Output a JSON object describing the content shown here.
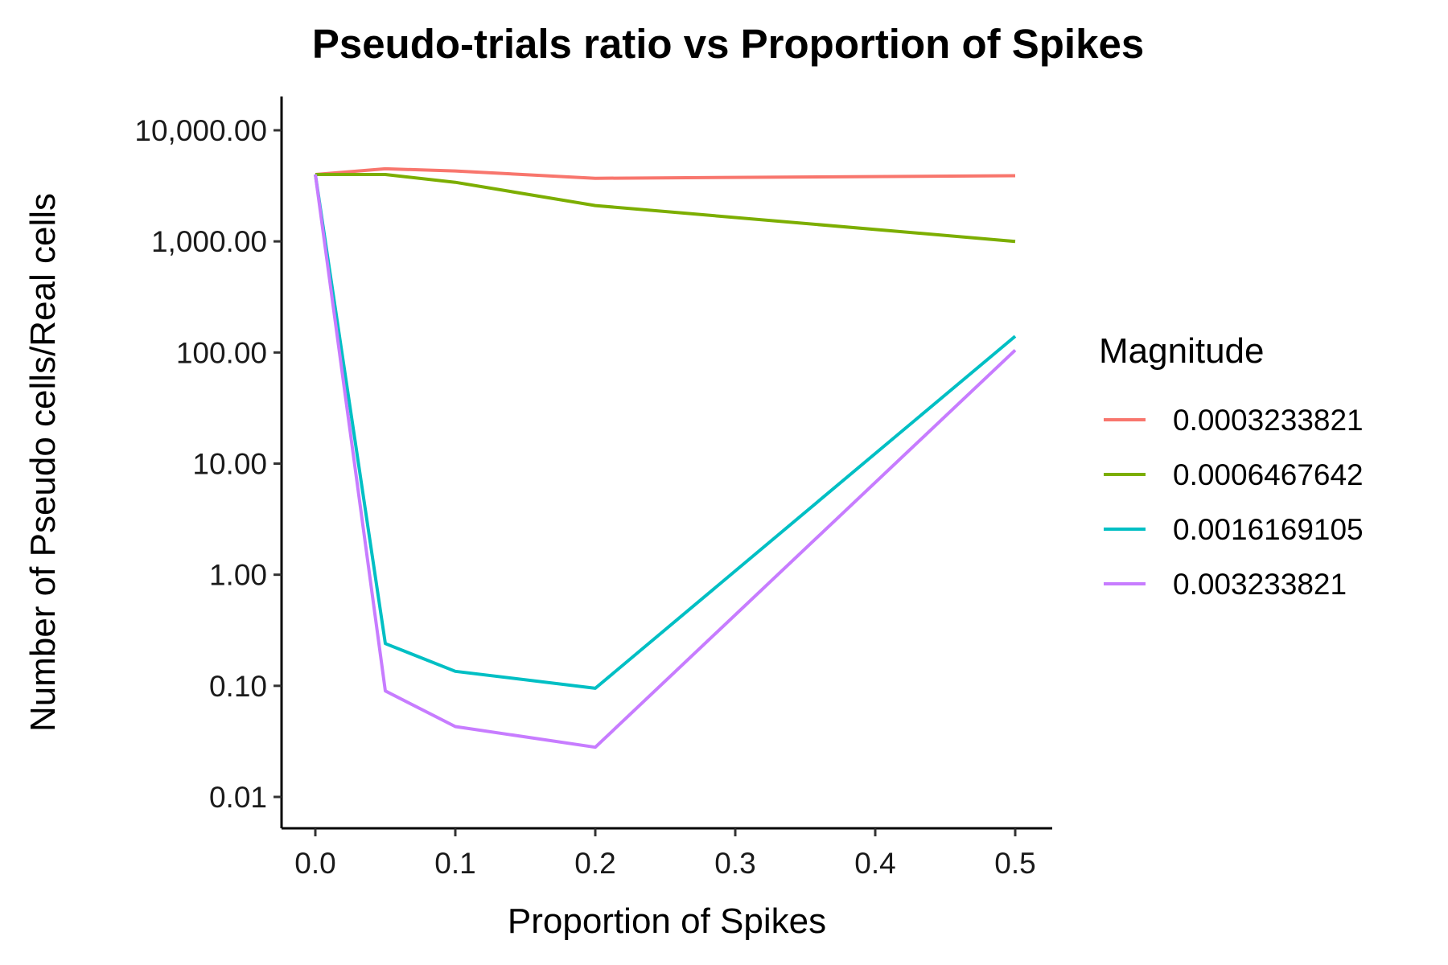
{
  "chart_data": {
    "type": "line",
    "title": "Pseudo-trials ratio vs Proportion of Spikes",
    "xlabel": "Proportion of Spikes",
    "ylabel": "Number of Pseudo cells/Real cells",
    "x_scale": "linear",
    "y_scale": "log10",
    "xlim": [
      -0.025,
      0.525
    ],
    "ylim": [
      0.005,
      20000
    ],
    "x_ticks": [
      0.0,
      0.1,
      0.2,
      0.3,
      0.4,
      0.5
    ],
    "x_tick_labels": [
      "0.0",
      "0.1",
      "0.2",
      "0.3",
      "0.4",
      "0.5"
    ],
    "y_ticks": [
      0.01,
      0.1,
      1,
      10,
      100,
      1000,
      10000
    ],
    "y_tick_labels": [
      "0.01",
      "0.10",
      "1.00",
      "10.00",
      "100.00",
      "1,000.00",
      "10,000.00"
    ],
    "grid": false,
    "legend": {
      "title": "Magnitude",
      "position": "right"
    },
    "x": [
      0.0,
      0.05,
      0.1,
      0.2,
      0.5
    ],
    "series": [
      {
        "name": "0.0003233821",
        "color": "#F8766D",
        "values": [
          4000,
          4500,
          4300,
          3700,
          3900
        ]
      },
      {
        "name": "0.0006467642",
        "color": "#7CAE00",
        "values": [
          4000,
          4000,
          3400,
          2100,
          1000
        ]
      },
      {
        "name": "0.0016169105",
        "color": "#00BFC4",
        "values": [
          4000,
          0.24,
          0.135,
          0.095,
          140
        ]
      },
      {
        "name": "0.003233821",
        "color": "#C77CFF",
        "values": [
          4000,
          0.09,
          0.043,
          0.028,
          105
        ]
      }
    ]
  }
}
